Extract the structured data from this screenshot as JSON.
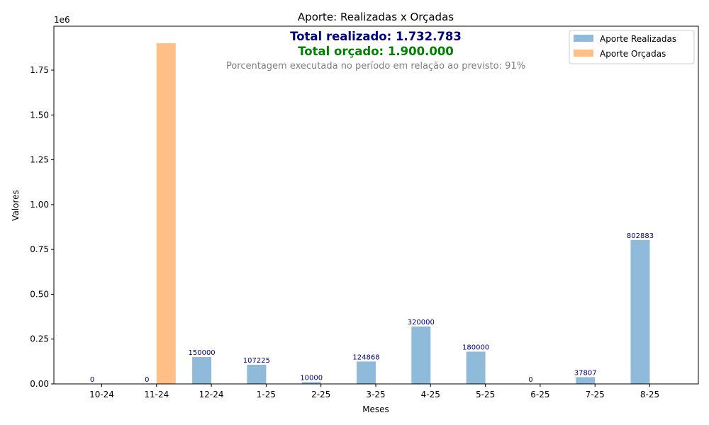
{
  "chart_data": {
    "type": "bar",
    "title": "Aporte: Realizadas x Orçadas",
    "xlabel": "Meses",
    "ylabel": "Valores",
    "y_offset_label": "1e6",
    "ylim": [
      0,
      1995000
    ],
    "yticks": [
      0,
      250000,
      500000,
      750000,
      1000000,
      1250000,
      1500000,
      1750000
    ],
    "ytick_labels": [
      "0.00",
      "0.25",
      "0.50",
      "0.75",
      "1.00",
      "1.25",
      "1.50",
      "1.75"
    ],
    "categories": [
      "10-24",
      "11-24",
      "12-24",
      "1-25",
      "2-25",
      "3-25",
      "4-25",
      "5-25",
      "6-25",
      "7-25",
      "8-25"
    ],
    "series": [
      {
        "name": "Aporte Realizadas",
        "color": "#8fbad9",
        "values": [
          0,
          0,
          150000,
          107225,
          10000,
          124868,
          320000,
          180000,
          0,
          37807,
          802883
        ],
        "labels": [
          "0",
          "0",
          "150000",
          "107225",
          "10000",
          "124868",
          "320000",
          "180000",
          "0",
          "37807",
          "802883"
        ]
      },
      {
        "name": "Aporte Orçadas",
        "color": "#ffbf86",
        "values": [
          0,
          1900000,
          0,
          0,
          0,
          0,
          0,
          0,
          0,
          0,
          0
        ]
      }
    ],
    "grid": false,
    "legend_position": "upper right",
    "annotations": {
      "total_realizado": "Total realizado: 1.732.783",
      "total_orcado": "Total orçado: 1.900.000",
      "percentual": "Porcentagem executada no período em relação ao previsto: 91%"
    },
    "colors": {
      "total_realizado": "#000080",
      "total_orcado": "#008000",
      "percentual": "#808080",
      "bar_label": "#000080"
    }
  }
}
